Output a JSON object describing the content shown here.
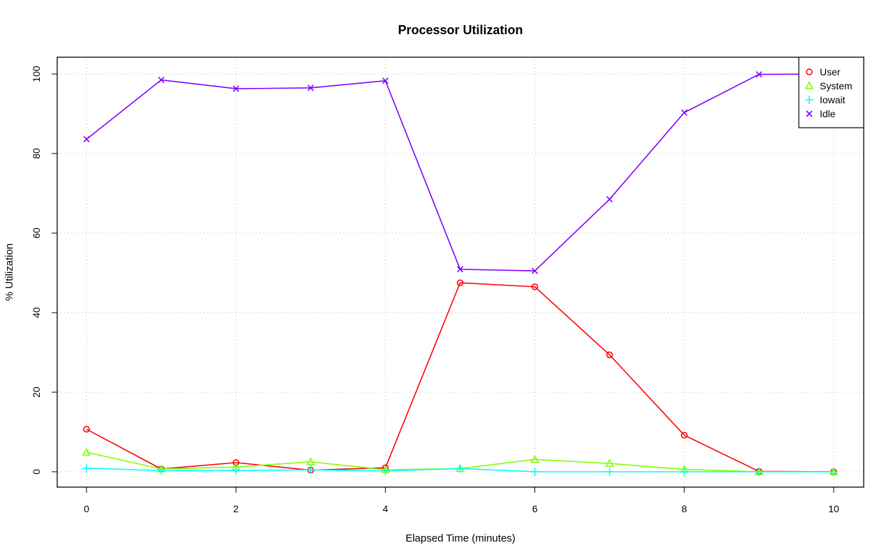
{
  "chart_data": {
    "type": "line",
    "title": "Processor Utilization",
    "xlabel": "Elapsed Time (minutes)",
    "ylabel": "% Utilization",
    "xlim": [
      0,
      10
    ],
    "ylim": [
      0,
      100
    ],
    "x_ticks": [
      0,
      2,
      4,
      6,
      8,
      10
    ],
    "y_ticks": [
      0,
      20,
      40,
      60,
      80,
      100
    ],
    "grid": true,
    "legend_position": "top-right",
    "x": [
      0,
      1,
      2,
      3,
      4,
      5,
      6,
      7,
      8,
      9,
      10
    ],
    "series": [
      {
        "name": "User",
        "color": "#ff0000",
        "marker": "circle",
        "values": [
          10.7,
          0.7,
          2.3,
          0.4,
          1.0,
          47.5,
          46.5,
          29.4,
          9.2,
          0.1,
          0.0
        ]
      },
      {
        "name": "System",
        "color": "#80ff00",
        "marker": "triangle",
        "values": [
          4.9,
          0.7,
          1.2,
          2.5,
          0.5,
          0.8,
          3.1,
          2.1,
          0.6,
          0.0,
          0.0
        ]
      },
      {
        "name": "Iowait",
        "color": "#00ffff",
        "marker": "plus",
        "values": [
          0.9,
          0.3,
          0.3,
          0.5,
          0.2,
          0.8,
          0.0,
          0.0,
          0.0,
          0.0,
          0.0
        ]
      },
      {
        "name": "Idle",
        "color": "#8000ff",
        "marker": "cross",
        "values": [
          83.6,
          98.5,
          96.3,
          96.5,
          98.3,
          50.9,
          50.5,
          68.5,
          90.3,
          99.9,
          100.0
        ]
      }
    ]
  }
}
